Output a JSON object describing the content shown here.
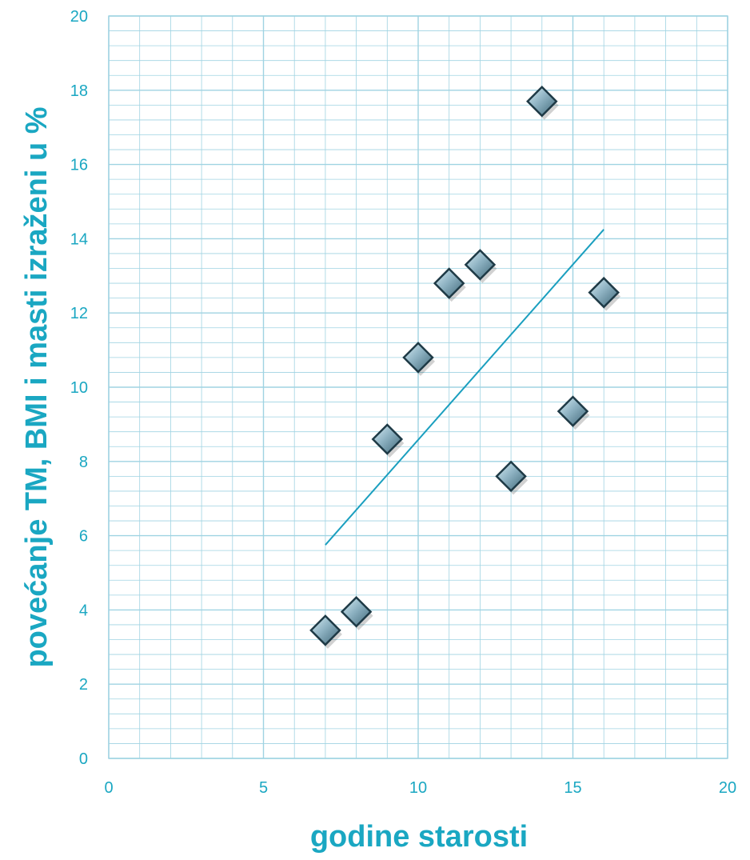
{
  "chart_data": {
    "type": "scatter",
    "title": "",
    "xlabel": "godine starosti",
    "ylabel": "povećanje TM, BMI i masti izraženi u %",
    "xlim": [
      0,
      20
    ],
    "ylim": [
      0,
      20
    ],
    "x_ticks": [
      "0",
      "5",
      "10",
      "15",
      "20"
    ],
    "y_ticks": [
      "0",
      "2",
      "4",
      "6",
      "8",
      "10",
      "12",
      "14",
      "16",
      "18",
      "20"
    ],
    "grid": true,
    "series": [
      {
        "points": [
          {
            "x": 7,
            "y": 3.45
          },
          {
            "x": 8,
            "y": 3.95
          },
          {
            "x": 9,
            "y": 8.6
          },
          {
            "x": 10,
            "y": 10.8
          },
          {
            "x": 11,
            "y": 12.8
          },
          {
            "x": 12,
            "y": 13.3
          },
          {
            "x": 13,
            "y": 7.6
          },
          {
            "x": 14,
            "y": 17.7
          },
          {
            "x": 15,
            "y": 9.35
          },
          {
            "x": 16,
            "y": 12.55
          }
        ]
      }
    ],
    "trendline": {
      "x": [
        7,
        16
      ],
      "y": [
        5.75,
        14.25
      ]
    },
    "colors": {
      "text": "#1aa7c2",
      "grid": "#9fd3e2",
      "marker": "#7fa3b4",
      "trendline": "#1a9fbf"
    }
  }
}
